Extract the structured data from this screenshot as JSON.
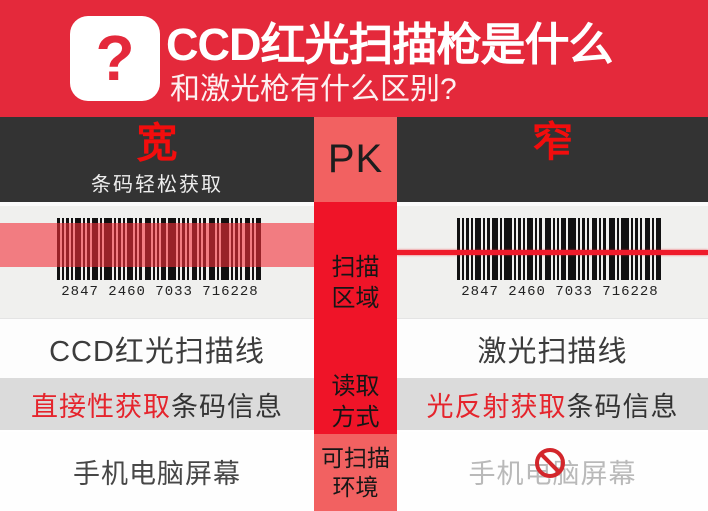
{
  "header": {
    "icon_glyph": "?",
    "title": "CCD红光扫描枪是什么",
    "subtitle": "和激光枪有什么区别?"
  },
  "banner": {
    "left_title": "宽",
    "left_subtitle": "条码轻松获取",
    "versus_label": "PK",
    "right_title": "窄"
  },
  "center_column": {
    "scan_area": {
      "line1": "扫描",
      "line2": "区域"
    },
    "read_method": {
      "line1": "读取",
      "line2": "方式"
    },
    "environment": {
      "line1": "可扫描",
      "line2": "环境"
    }
  },
  "barcodes": {
    "left_number": "2847 2460 7033 716228",
    "right_number": "2847 2460 7033 716228"
  },
  "rows": {
    "scan_line": {
      "left": "CCD红光扫描线",
      "right": "激光扫描线"
    },
    "read_method": {
      "left_highlight": "直接性获取",
      "left_text": "条码信息",
      "right_highlight": "光反射获取",
      "right_text": "条码信息"
    },
    "environment": {
      "left": "手机电脑屏幕",
      "right": "手机电脑屏幕"
    }
  },
  "colors": {
    "header_red": "#e4293b",
    "band_dark": "#333333",
    "column_red": "#ef1428",
    "column_salmon": "#f26161",
    "highlight_red": "#e5242c",
    "faded_text": "#b9b9b9"
  }
}
